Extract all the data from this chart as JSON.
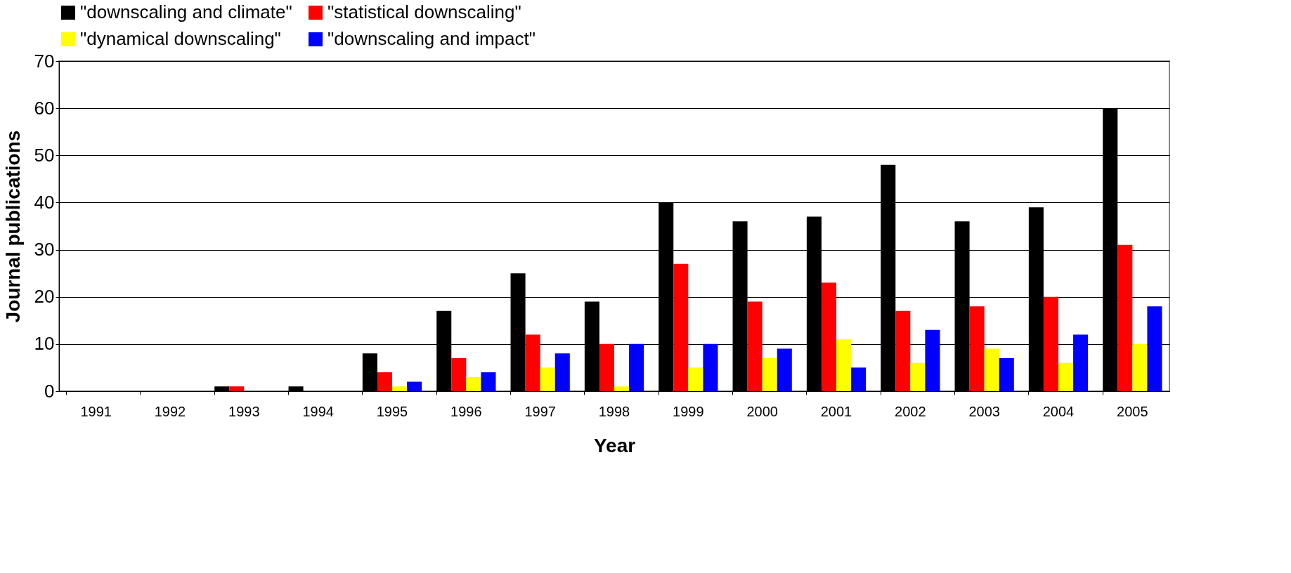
{
  "chart_data": {
    "type": "bar",
    "xlabel": "Year",
    "ylabel": "Journal publications",
    "categories": [
      "1991",
      "1992",
      "1993",
      "1994",
      "1995",
      "1996",
      "1997",
      "1998",
      "1999",
      "2000",
      "2001",
      "2002",
      "2003",
      "2004",
      "2005"
    ],
    "series": [
      {
        "name": "\"downscaling and climate\"",
        "color": "#000000",
        "values": [
          0,
          0,
          1,
          1,
          8,
          17,
          25,
          19,
          40,
          36,
          37,
          48,
          36,
          39,
          60
        ]
      },
      {
        "name": "\"statistical downscaling\"",
        "color": "#ff0000",
        "values": [
          0,
          0,
          1,
          0,
          4,
          7,
          12,
          10,
          27,
          19,
          23,
          17,
          18,
          20,
          31
        ]
      },
      {
        "name": "\"dynamical downscaling\"",
        "color": "#ffff00",
        "values": [
          0,
          0,
          0,
          0,
          1,
          3,
          5,
          1,
          5,
          7,
          11,
          6,
          9,
          6,
          10
        ]
      },
      {
        "name": "\"downscaling and impact\"",
        "color": "#0000ff",
        "values": [
          0,
          0,
          0,
          0,
          2,
          4,
          8,
          10,
          10,
          9,
          5,
          13,
          7,
          12,
          18
        ]
      }
    ],
    "ylim": [
      0,
      70
    ],
    "yticks": [
      0,
      10,
      20,
      30,
      40,
      50,
      60,
      70
    ],
    "grid": "y",
    "legend": "top"
  }
}
